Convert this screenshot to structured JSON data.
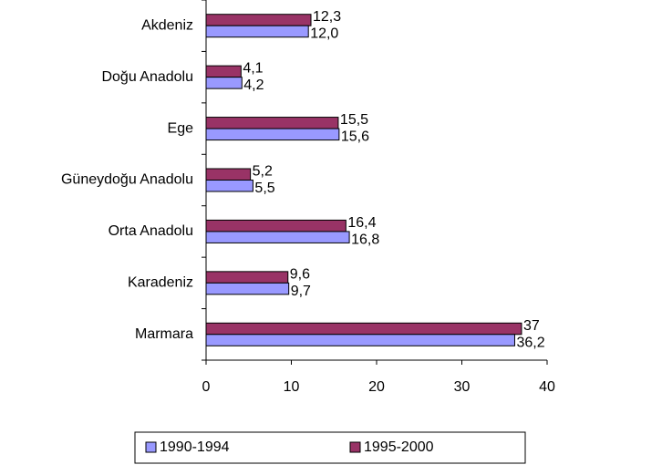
{
  "chart_data": {
    "type": "hbar",
    "categories": [
      "Akdeniz",
      "Doğu Anadolu",
      "Ege",
      "Güneydoğu Anadolu",
      "Orta Anadolu",
      "Karadeniz",
      "Marmara"
    ],
    "series": [
      {
        "name": "1990-1994",
        "color": "#9999ff",
        "values": [
          12.0,
          4.2,
          15.6,
          5.5,
          16.8,
          9.7,
          36.2
        ],
        "value_labels": [
          "12,0",
          "4,2",
          "15,6",
          "5,5",
          "16,8",
          "9,7",
          "36,2"
        ]
      },
      {
        "name": "1995-2000",
        "color": "#993366",
        "values": [
          12.3,
          4.1,
          15.5,
          5.2,
          16.4,
          9.6,
          37
        ],
        "value_labels": [
          "12,3",
          "4,1",
          "15,5",
          "5,2",
          "16,4",
          "9,6",
          "37"
        ]
      }
    ],
    "xlim": [
      0,
      40
    ],
    "xticks": [
      0,
      10,
      20,
      30,
      40
    ],
    "legend": "bottom"
  }
}
